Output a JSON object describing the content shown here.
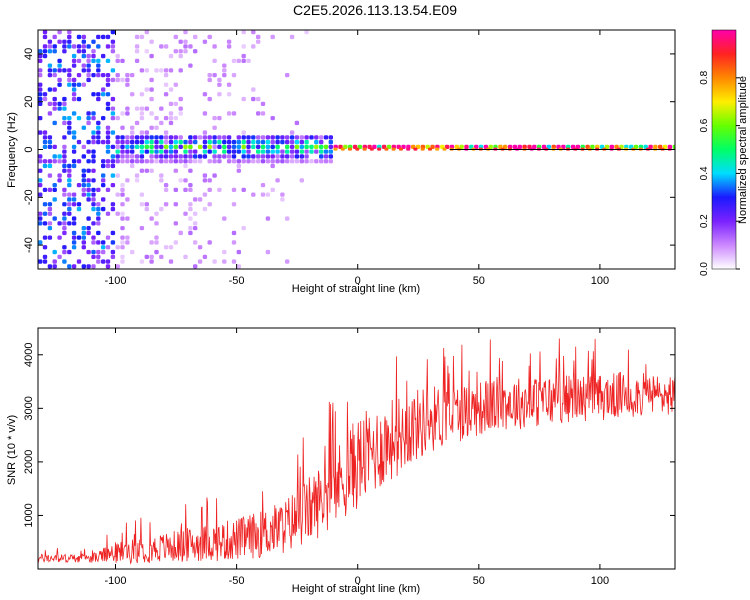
{
  "title": "C2E5.2026.113.13.54.E09",
  "chart_data": [
    {
      "type": "heatmap",
      "name": "spectrogram",
      "xlabel": "Height of straight line (km)",
      "ylabel": "Frequency (Hz)",
      "xlim": [
        -132,
        131
      ],
      "ylim": [
        -50,
        50
      ],
      "xticks": [
        -100,
        -50,
        0,
        50,
        100
      ],
      "yticks": [
        -40,
        -20,
        0,
        20,
        40
      ],
      "zlim": [
        0,
        1
      ],
      "colorbar": {
        "label": "Normalized spectral amplitude",
        "ticks": [
          0.0,
          0.2,
          0.4,
          0.6,
          0.8
        ],
        "colors": [
          "#ffffff",
          "#cc88ff",
          "#7a22ff",
          "#1a1aff",
          "#00ddff",
          "#00ff66",
          "#66ff00",
          "#ffee00",
          "#ff8800",
          "#ff2222",
          "#ff00aa"
        ]
      },
      "features": [
        {
          "label": "broadband noise region",
          "x_range": [
            -132,
            -100
          ],
          "freq_range": [
            -50,
            50
          ],
          "amplitude": 0.3
        },
        {
          "label": "scattered weak energy",
          "x_range": [
            -100,
            -20
          ],
          "freq_range": [
            -50,
            50
          ],
          "amplitude": 0.1
        },
        {
          "label": "central band",
          "x_range": [
            -100,
            -10
          ],
          "freq_range": [
            -6,
            6
          ],
          "amplitude": 0.5
        },
        {
          "label": "narrow central line",
          "x_range": [
            -10,
            131
          ],
          "freq_range": [
            -1,
            1
          ],
          "amplitude": 0.95
        }
      ]
    },
    {
      "type": "line",
      "name": "snr",
      "xlabel": "Height of straight line (km)",
      "ylabel": "SNR (10 * v/v)",
      "xlim": [
        -132,
        131
      ],
      "ylim": [
        0,
        4500
      ],
      "xticks": [
        -100,
        -50,
        0,
        50,
        100
      ],
      "yticks": [
        1000,
        2000,
        3000,
        4000
      ],
      "series": [
        {
          "name": "SNR",
          "color": "#ee2222",
          "envelope_x": [
            -132,
            -110,
            -100,
            -90,
            -80,
            -70,
            -60,
            -50,
            -40,
            -30,
            -20,
            -10,
            0,
            10,
            20,
            30,
            40,
            50,
            60,
            70,
            80,
            90,
            100,
            110,
            120,
            131
          ],
          "envelope_mean": [
            200,
            200,
            300,
            350,
            400,
            450,
            500,
            550,
            650,
            800,
            1100,
            1500,
            2000,
            2300,
            2600,
            2800,
            2900,
            3000,
            3100,
            3100,
            3150,
            3200,
            3200,
            3250,
            3250,
            3250
          ],
          "envelope_spread": [
            100,
            100,
            250,
            300,
            350,
            400,
            450,
            500,
            550,
            650,
            800,
            900,
            1100,
            1000,
            900,
            800,
            700,
            650,
            650,
            600,
            600,
            550,
            550,
            550,
            500,
            500
          ]
        }
      ]
    }
  ]
}
